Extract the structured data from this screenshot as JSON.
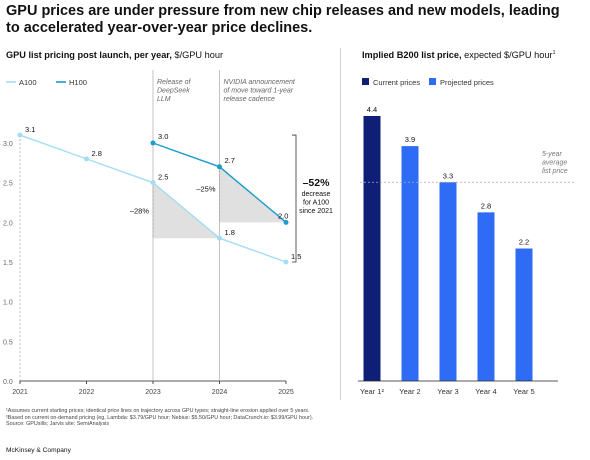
{
  "headline": "GPU prices are under pressure from new chip releases and new models, leading to accelerated year-over-year price declines.",
  "left_title": {
    "bold": "GPU list pricing post launch, per year,",
    "normal": " $/GPU hour"
  },
  "right_title": {
    "bold": "Implied B200 list price,",
    "normal": " expected $/GPU hour",
    "sup": "1"
  },
  "footnotes": [
    "¹Assumes current starting prices; identical price lines on trajectory across GPU types; straight-line erosion applied over 5 years.",
    "²Based on current on-demand pricing (eg, Lambda: $3.79/GPU hour; Nebius: $5.50/GPU hour; DataCrunch.io: $3.99/GPU hour).",
    " Source: GPUsills; Jarvis site; SemiAnalysis"
  ],
  "brand": "McKinsey & Company",
  "colors": {
    "a100": "#a3ddf3",
    "h100": "#1a9ccc",
    "current": "#0f1f77",
    "projected": "#2f6cf6",
    "shade": "#e0e0e0"
  },
  "chart_data": [
    {
      "type": "line",
      "title": "GPU list pricing post launch, per year, $/GPU hour",
      "categories": [
        "2021",
        "2022",
        "2023",
        "2024",
        "2025"
      ],
      "ylim": [
        0,
        3.0
      ],
      "yticks": [
        "0.0",
        "0.5",
        "1.0",
        "1.5",
        "2.0",
        "2.5",
        "3.0"
      ],
      "legend_position": "top-left",
      "series": [
        {
          "name": "A100",
          "x": [
            "2021",
            "2022",
            "2023",
            "2024",
            "2025"
          ],
          "values": [
            3.1,
            2.8,
            2.5,
            1.8,
            1.5
          ],
          "labels": [
            "3.1",
            "2.8",
            "2.5",
            "1.8",
            "1.5"
          ]
        },
        {
          "name": "H100",
          "x": [
            "2023",
            "2024",
            "2025"
          ],
          "values": [
            3.0,
            2.7,
            2.0
          ],
          "labels": [
            "3.0",
            "2.7",
            "2.0"
          ]
        }
      ],
      "annotations": [
        {
          "text": "Release of\nDeepSeek\nLLM",
          "x": "2023"
        },
        {
          "text": "NVIDIA announcement\nof move toward 1-year\nrelease cadence",
          "x": "2024"
        },
        {
          "text": "–28%"
        },
        {
          "text": "–25%"
        },
        {
          "text": "–52%",
          "detail": "decrease\nfor A100\nsince 2021"
        }
      ]
    },
    {
      "type": "bar",
      "title": "Implied B200 list price, expected $/GPU hour",
      "categories": [
        "Year 1²",
        "Year 2",
        "Year 3",
        "Year 4",
        "Year 5"
      ],
      "values": [
        4.4,
        3.9,
        3.3,
        2.8,
        2.2
      ],
      "labels": [
        "4.4",
        "3.9",
        "3.3",
        "2.8",
        "2.2"
      ],
      "legend": [
        "Current prices",
        "Projected prices"
      ],
      "legend_position": "top-left",
      "average": {
        "value": 3.3,
        "label": "5-year\naverage\nlist price"
      }
    }
  ]
}
